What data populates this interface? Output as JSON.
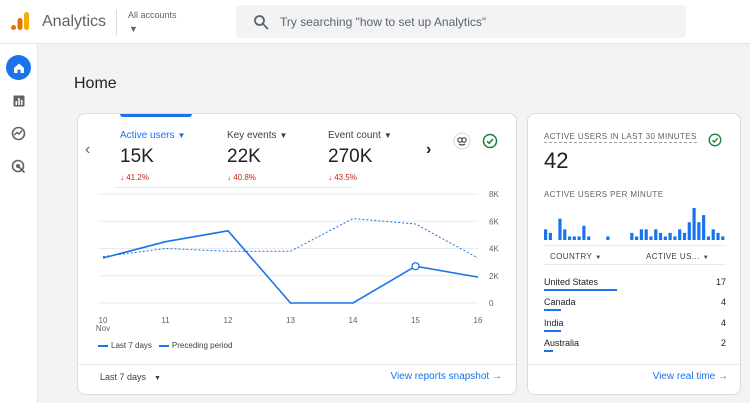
{
  "header": {
    "app_title": "Analytics",
    "account_label": "All accounts",
    "search_placeholder": "Try searching \"how to set up Analytics\""
  },
  "nav": {
    "items": [
      {
        "icon": "home-icon",
        "active": true
      },
      {
        "icon": "reports-icon",
        "active": false
      },
      {
        "icon": "explore-icon",
        "active": false
      },
      {
        "icon": "advertising-icon",
        "active": false
      }
    ]
  },
  "page_title": "Home",
  "metrics": [
    {
      "label": "Active users",
      "value": "15K",
      "change": "↓ 41.2%",
      "active": true
    },
    {
      "label": "Key events",
      "value": "22K",
      "change": "↓ 40.8%",
      "active": false
    },
    {
      "label": "Event count",
      "value": "270K",
      "change": "↓ 43.5%",
      "active": false
    }
  ],
  "chart_data": {
    "type": "line",
    "categories": [
      "10",
      "11",
      "12",
      "13",
      "14",
      "15",
      "16"
    ],
    "x_sublabel": "Nov",
    "ylim": [
      0,
      8000
    ],
    "y_ticks": [
      "0",
      "2K",
      "4K",
      "6K",
      "8K"
    ],
    "series": [
      {
        "name": "Last 7 days",
        "style": "solid",
        "values": [
          3300,
          4500,
          5300,
          0,
          0,
          2700,
          1900
        ]
      },
      {
        "name": "Preceding period",
        "style": "dashed",
        "values": [
          3400,
          4000,
          3800,
          3800,
          6200,
          5800,
          3300
        ]
      }
    ],
    "color": "#1a73e8"
  },
  "date_range": "Last 7 days",
  "view_reports": "View reports snapshot",
  "realtime": {
    "title": "ACTIVE USERS IN LAST 30 MINUTES",
    "value": "42",
    "subtitle": "ACTIVE USERS PER MINUTE",
    "per_minute": [
      3,
      2,
      0,
      6,
      3,
      1,
      1,
      1,
      4,
      1,
      0,
      0,
      0,
      1,
      0,
      0,
      0,
      0,
      2,
      1,
      3,
      3,
      1,
      3,
      2,
      1,
      2,
      1,
      3,
      2,
      5,
      9,
      5,
      7,
      1,
      3,
      2,
      1
    ],
    "col_country": "COUNTRY",
    "col_users": "ACTIVE US...",
    "rows": [
      {
        "name": "United States",
        "value": "17"
      },
      {
        "name": "Canada",
        "value": "4"
      },
      {
        "name": "India",
        "value": "4"
      },
      {
        "name": "Australia",
        "value": "2"
      }
    ],
    "link": "View real time"
  },
  "colors": {
    "accent": "#1a73e8",
    "negative": "#c5221f",
    "logo_orange": "#f9ab00",
    "logo_dark": "#e37400"
  }
}
